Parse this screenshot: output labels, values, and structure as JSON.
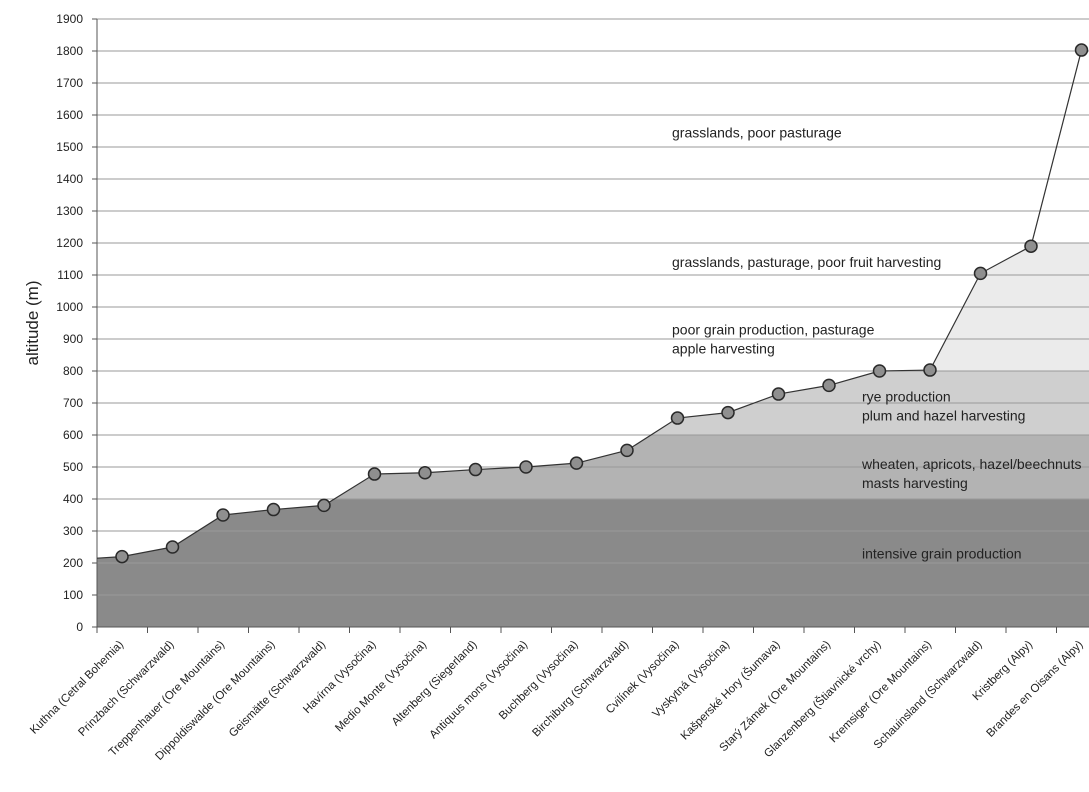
{
  "chart_data": {
    "type": "line",
    "title": "",
    "xlabel": "",
    "ylabel": "altitude (m)",
    "ylim": [
      0,
      1900
    ],
    "yticks": [
      0,
      100,
      200,
      300,
      400,
      500,
      600,
      700,
      800,
      900,
      1000,
      1100,
      1200,
      1300,
      1400,
      1500,
      1600,
      1700,
      1800,
      1900
    ],
    "grid": true,
    "categories": [
      "Kuthna (Cetral Bohemia)",
      "Prinzbach (Schwarzwald)",
      "Treppenhauer (Ore Mountains)",
      "Dippoldiswalde (Ore Mountains)",
      "Geismätte (Schwarzwald)",
      "Havírna (Vysočina)",
      "Medio Monte (Vysočina)",
      "Altenberg (Siegerland)",
      "Antiquus mons (Vysočina)",
      "Buchberg (Vysočina)",
      "Birchiburg (Schwarzwald)",
      "Cvilínek (Vysočina)",
      "Vyskytná (Vysočina)",
      "Kašperské Hory (Šumava)",
      "Starý Zámek (Ore Mountains)",
      "Glanzenberg (Štiavnické vrchy)",
      "Kremsiger (Ore Mountains)",
      "Schauinsland (Schwarzwald)",
      "Kristberg (Alpy)",
      "Brandes en Oisans (Alpy)"
    ],
    "series": [
      {
        "values": [
          220,
          250,
          350,
          367,
          380,
          478,
          482,
          492,
          500,
          512,
          552,
          653,
          670,
          728,
          755,
          800,
          803,
          1105,
          1190,
          1803
        ]
      }
    ],
    "zones": [
      {
        "from": 0,
        "to": 400,
        "label_lines": [
          "intensive grain production"
        ],
        "fill": "#8a8a8a",
        "label_y": 230
      },
      {
        "from": 400,
        "to": 600,
        "label_lines": [
          "wheaten, apricots, hazel/beechnuts",
          "masts harvesting"
        ],
        "fill": "#b3b3b3",
        "label_y": 510
      },
      {
        "from": 600,
        "to": 800,
        "label_lines": [
          "rye production",
          "plum and hazel harvesting"
        ],
        "fill": "#cfcfcf",
        "label_y": 720
      },
      {
        "from": 800,
        "to": 1200,
        "label_lines": [
          "poor grain production, pasturage",
          "apple harvesting"
        ],
        "fill": "#ebebeb",
        "label_y": 930
      },
      {
        "from": 1200,
        "to": 1200,
        "label_lines": [
          "grasslands, pasturage, poor fruit harvesting"
        ],
        "fill": "#ebebeb",
        "label_y": 1140
      },
      {
        "from": 1200,
        "to": 1900,
        "label_lines": [
          "grasslands, poor pasturage"
        ],
        "fill": "#ffffff",
        "label_y": 1545
      }
    ],
    "colors": {
      "marker_fill": "#8f8f8f",
      "marker_stroke": "#2a2a2a",
      "line": "#333333",
      "grid": "#9a9a9a"
    }
  }
}
